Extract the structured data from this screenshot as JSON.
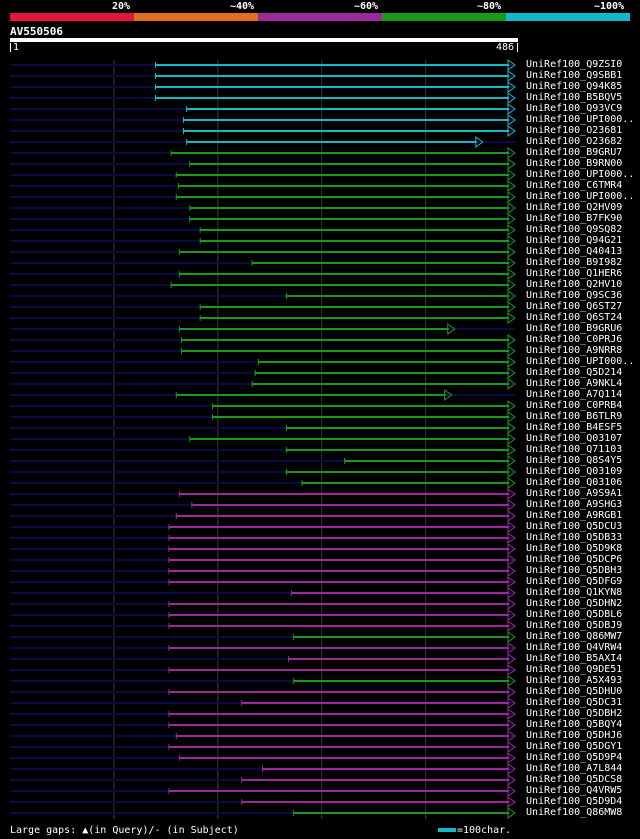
{
  "legend": {
    "labels": [
      "20%",
      "~40%",
      "~60%",
      "~80%",
      "~100%"
    ],
    "colors": [
      "#e5143c",
      "#e0701c",
      "#9a2a9a",
      "#1a9a1a",
      "#15b8c8"
    ]
  },
  "query": {
    "name": "AV550506",
    "start": "1",
    "end": "486",
    "length": 486
  },
  "track_color": "#0a0a4a",
  "grid_color": "#3a3a3a",
  "hits": [
    {
      "name": "UniRef100_Q9ZSI0",
      "start": 140,
      "end": 486,
      "color": "#15b8c8"
    },
    {
      "name": "UniRef100_Q9SBB1",
      "start": 140,
      "end": 486,
      "color": "#15b8c8"
    },
    {
      "name": "UniRef100_Q94K85",
      "start": 140,
      "end": 486,
      "color": "#15b8c8"
    },
    {
      "name": "UniRef100_B5BQV5",
      "start": 140,
      "end": 486,
      "color": "#15b8c8"
    },
    {
      "name": "UniRef100_Q93VC9",
      "start": 170,
      "end": 486,
      "color": "#15b8c8"
    },
    {
      "name": "UniRef100_UPI000..",
      "start": 167,
      "end": 486,
      "color": "#15b8c8"
    },
    {
      "name": "UniRef100_O23681",
      "start": 167,
      "end": 486,
      "color": "#15b8c8"
    },
    {
      "name": "UniRef100_O23682",
      "start": 170,
      "end": 455,
      "color": "#15b8c8"
    },
    {
      "name": "UniRef100_B9GRU7",
      "start": 155,
      "end": 486,
      "color": "#1a9a1a"
    },
    {
      "name": "UniRef100_B9RN00",
      "start": 173,
      "end": 486,
      "color": "#1a9a1a"
    },
    {
      "name": "UniRef100_UPI000..",
      "start": 160,
      "end": 486,
      "color": "#1a9a1a"
    },
    {
      "name": "UniRef100_C6TMR4",
      "start": 162,
      "end": 486,
      "color": "#1a9a1a"
    },
    {
      "name": "UniRef100_UPI000..",
      "start": 160,
      "end": 486,
      "color": "#1a9a1a"
    },
    {
      "name": "UniRef100_Q2HV09",
      "start": 173,
      "end": 486,
      "color": "#1a9a1a"
    },
    {
      "name": "UniRef100_B7FK90",
      "start": 173,
      "end": 486,
      "color": "#1a9a1a"
    },
    {
      "name": "UniRef100_Q9SQ82",
      "start": 183,
      "end": 486,
      "color": "#1a9a1a"
    },
    {
      "name": "UniRef100_Q94G21",
      "start": 183,
      "end": 486,
      "color": "#1a9a1a"
    },
    {
      "name": "UniRef100_Q40413",
      "start": 163,
      "end": 486,
      "color": "#1a9a1a"
    },
    {
      "name": "UniRef100_B9I982",
      "start": 233,
      "end": 486,
      "color": "#1a9a1a"
    },
    {
      "name": "UniRef100_Q1HER6",
      "start": 163,
      "end": 486,
      "color": "#1a9a1a"
    },
    {
      "name": "UniRef100_Q2HV10",
      "start": 155,
      "end": 486,
      "color": "#1a9a1a"
    },
    {
      "name": "UniRef100_Q9SC36",
      "start": 266,
      "end": 486,
      "color": "#1a9a1a"
    },
    {
      "name": "UniRef100_Q6ST27",
      "start": 183,
      "end": 486,
      "color": "#1a9a1a"
    },
    {
      "name": "UniRef100_Q6ST24",
      "start": 183,
      "end": 486,
      "color": "#1a9a1a"
    },
    {
      "name": "UniRef100_B9GRU6",
      "start": 163,
      "end": 428,
      "color": "#1a9a1a"
    },
    {
      "name": "UniRef100_C0PRJ6",
      "start": 165,
      "end": 486,
      "color": "#1a9a1a"
    },
    {
      "name": "UniRef100_A9NRR8",
      "start": 165,
      "end": 486,
      "color": "#1a9a1a"
    },
    {
      "name": "UniRef100_UPI000..",
      "start": 239,
      "end": 486,
      "color": "#1a9a1a"
    },
    {
      "name": "UniRef100_Q5D214",
      "start": 236,
      "end": 486,
      "color": "#1a9a1a"
    },
    {
      "name": "UniRef100_A9NKL4",
      "start": 233,
      "end": 486,
      "color": "#1a9a1a"
    },
    {
      "name": "UniRef100_A7Q114",
      "start": 160,
      "end": 425,
      "color": "#1a9a1a"
    },
    {
      "name": "UniRef100_C0PRB4",
      "start": 195,
      "end": 486,
      "color": "#1a9a1a"
    },
    {
      "name": "UniRef100_B6TLR9",
      "start": 195,
      "end": 486,
      "color": "#1a9a1a"
    },
    {
      "name": "UniRef100_B4ESF5",
      "start": 266,
      "end": 486,
      "color": "#1a9a1a"
    },
    {
      "name": "UniRef100_Q03107",
      "start": 173,
      "end": 486,
      "color": "#1a9a1a"
    },
    {
      "name": "UniRef100_Q71103",
      "start": 266,
      "end": 486,
      "color": "#1a9a1a"
    },
    {
      "name": "UniRef100_Q8S4Y5",
      "start": 322,
      "end": 486,
      "color": "#1a9a1a"
    },
    {
      "name": "UniRef100_Q03109",
      "start": 266,
      "end": 486,
      "color": "#1a9a1a"
    },
    {
      "name": "UniRef100_Q03106",
      "start": 281,
      "end": 486,
      "color": "#1a9a1a"
    },
    {
      "name": "UniRef100_A9S9A1",
      "start": 163,
      "end": 486,
      "color": "#9a2a9a"
    },
    {
      "name": "UniRef100_A9SHG3",
      "start": 175,
      "end": 486,
      "color": "#9a2a9a"
    },
    {
      "name": "UniRef100_A9RGB1",
      "start": 160,
      "end": 486,
      "color": "#9a2a9a"
    },
    {
      "name": "UniRef100_Q5DCU3",
      "start": 153,
      "end": 486,
      "color": "#9a2a9a"
    },
    {
      "name": "UniRef100_Q5DB33",
      "start": 153,
      "end": 486,
      "color": "#9a2a9a"
    },
    {
      "name": "UniRef100_Q5D9K8",
      "start": 153,
      "end": 486,
      "color": "#9a2a9a"
    },
    {
      "name": "UniRef100_Q5DCP6",
      "start": 153,
      "end": 486,
      "color": "#9a2a9a"
    },
    {
      "name": "UniRef100_Q5DBH3",
      "start": 153,
      "end": 486,
      "color": "#9a2a9a"
    },
    {
      "name": "UniRef100_Q5DFG9",
      "start": 153,
      "end": 486,
      "color": "#9a2a9a"
    },
    {
      "name": "UniRef100_Q1KYN8",
      "start": 271,
      "end": 486,
      "color": "#9a2a9a"
    },
    {
      "name": "UniRef100_Q5DHN2",
      "start": 153,
      "end": 486,
      "color": "#9a2a9a"
    },
    {
      "name": "UniRef100_Q5DBL6",
      "start": 153,
      "end": 486,
      "color": "#9a2a9a"
    },
    {
      "name": "UniRef100_Q5DBJ9",
      "start": 153,
      "end": 486,
      "color": "#9a2a9a"
    },
    {
      "name": "UniRef100_Q86MW7",
      "start": 273,
      "end": 486,
      "color": "#1a9a1a"
    },
    {
      "name": "UniRef100_Q4VRW4",
      "start": 153,
      "end": 486,
      "color": "#9a2a9a"
    },
    {
      "name": "UniRef100_B5AXI4",
      "start": 268,
      "end": 486,
      "color": "#9a2a9a"
    },
    {
      "name": "UniRef100_Q9DE51",
      "start": 153,
      "end": 486,
      "color": "#9a2a9a"
    },
    {
      "name": "UniRef100_A5X493",
      "start": 273,
      "end": 486,
      "color": "#1a9a1a"
    },
    {
      "name": "UniRef100_Q5DHU0",
      "start": 153,
      "end": 486,
      "color": "#9a2a9a"
    },
    {
      "name": "UniRef100_Q5DC31",
      "start": 223,
      "end": 486,
      "color": "#9a2a9a"
    },
    {
      "name": "UniRef100_Q5DBH2",
      "start": 153,
      "end": 486,
      "color": "#9a2a9a"
    },
    {
      "name": "UniRef100_Q5BQY4",
      "start": 153,
      "end": 486,
      "color": "#9a2a9a"
    },
    {
      "name": "UniRef100_Q5DHJ6",
      "start": 160,
      "end": 486,
      "color": "#9a2a9a"
    },
    {
      "name": "UniRef100_Q5DGY1",
      "start": 153,
      "end": 486,
      "color": "#9a2a9a"
    },
    {
      "name": "UniRef100_Q5D9P4",
      "start": 163,
      "end": 486,
      "color": "#9a2a9a"
    },
    {
      "name": "UniRef100_A7L844",
      "start": 243,
      "end": 486,
      "color": "#9a2a9a"
    },
    {
      "name": "UniRef100_Q5DCS8",
      "start": 223,
      "end": 486,
      "color": "#9a2a9a"
    },
    {
      "name": "UniRef100_Q4VRW5",
      "start": 153,
      "end": 486,
      "color": "#9a2a9a"
    },
    {
      "name": "UniRef100_Q5D9D4",
      "start": 223,
      "end": 486,
      "color": "#9a2a9a"
    },
    {
      "name": "UniRef100_Q86MW8",
      "start": 273,
      "end": 486,
      "color": "#1a9a1a"
    }
  ],
  "footer": {
    "gaps_text": "Large gaps: ▲(in Query)/- (in Subject)",
    "scale_text": "=100char."
  }
}
